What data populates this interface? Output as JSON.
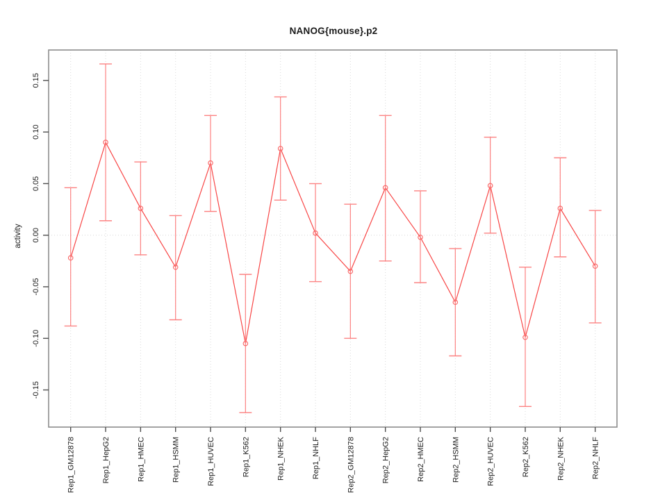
{
  "window": {
    "background": "#ffffff"
  },
  "chart_data": {
    "type": "line",
    "subtype": "points-with-error-bars",
    "title": "NANOG{mouse}.p2",
    "xlabel": "",
    "ylabel": "activity",
    "ylim": [
      -0.186,
      0.1795
    ],
    "grid": {
      "vertical_dotted_at_each_category": true,
      "horizontal_dotted_at_zero": true
    },
    "legend_position": "none",
    "categories": [
      "Rep1_GM12878",
      "Rep1_HepG2",
      "Rep1_HMEC",
      "Rep1_HSMM",
      "Rep1_HUVEC",
      "Rep1_K562",
      "Rep1_NHEK",
      "Rep1_NHLF",
      "Rep2_GM12878",
      "Rep2_HepG2",
      "Rep2_HMEC",
      "Rep2_HSMM",
      "Rep2_HUVEC",
      "Rep2_K562",
      "Rep2_NHEK",
      "Rep2_NHLF"
    ],
    "series": [
      {
        "name": "activity",
        "values": [
          -0.022,
          0.09,
          0.026,
          -0.031,
          0.07,
          -0.105,
          0.084,
          0.002,
          -0.035,
          0.046,
          -0.002,
          -0.065,
          0.048,
          -0.099,
          0.026,
          -0.03
        ],
        "err_low": [
          -0.088,
          0.014,
          -0.019,
          -0.082,
          0.023,
          -0.172,
          0.034,
          -0.045,
          -0.1,
          -0.025,
          -0.046,
          -0.117,
          0.002,
          -0.166,
          -0.021,
          -0.085
        ],
        "err_high": [
          0.046,
          0.166,
          0.071,
          0.019,
          0.116,
          -0.038,
          0.134,
          0.05,
          0.03,
          0.116,
          0.043,
          -0.013,
          0.095,
          -0.031,
          0.075,
          0.024
        ]
      }
    ],
    "y_ticks": {
      "values": [
        0.15,
        0.1,
        0.05,
        0.0,
        -0.05,
        -0.1,
        -0.15
      ],
      "labels": [
        "0.15",
        "0.10",
        "0.05",
        "0.00",
        "-0.05",
        "-0.10",
        "-0.15"
      ]
    },
    "colors": {
      "series_line": "#f84545",
      "error_bar": "#fc8181",
      "point_outline": "#f96b6b",
      "grid_line": "#d8d8d8",
      "box_border": "#8c8c8c",
      "tick_mark": "#4d4d4d",
      "text": "#1a1a1a"
    }
  }
}
